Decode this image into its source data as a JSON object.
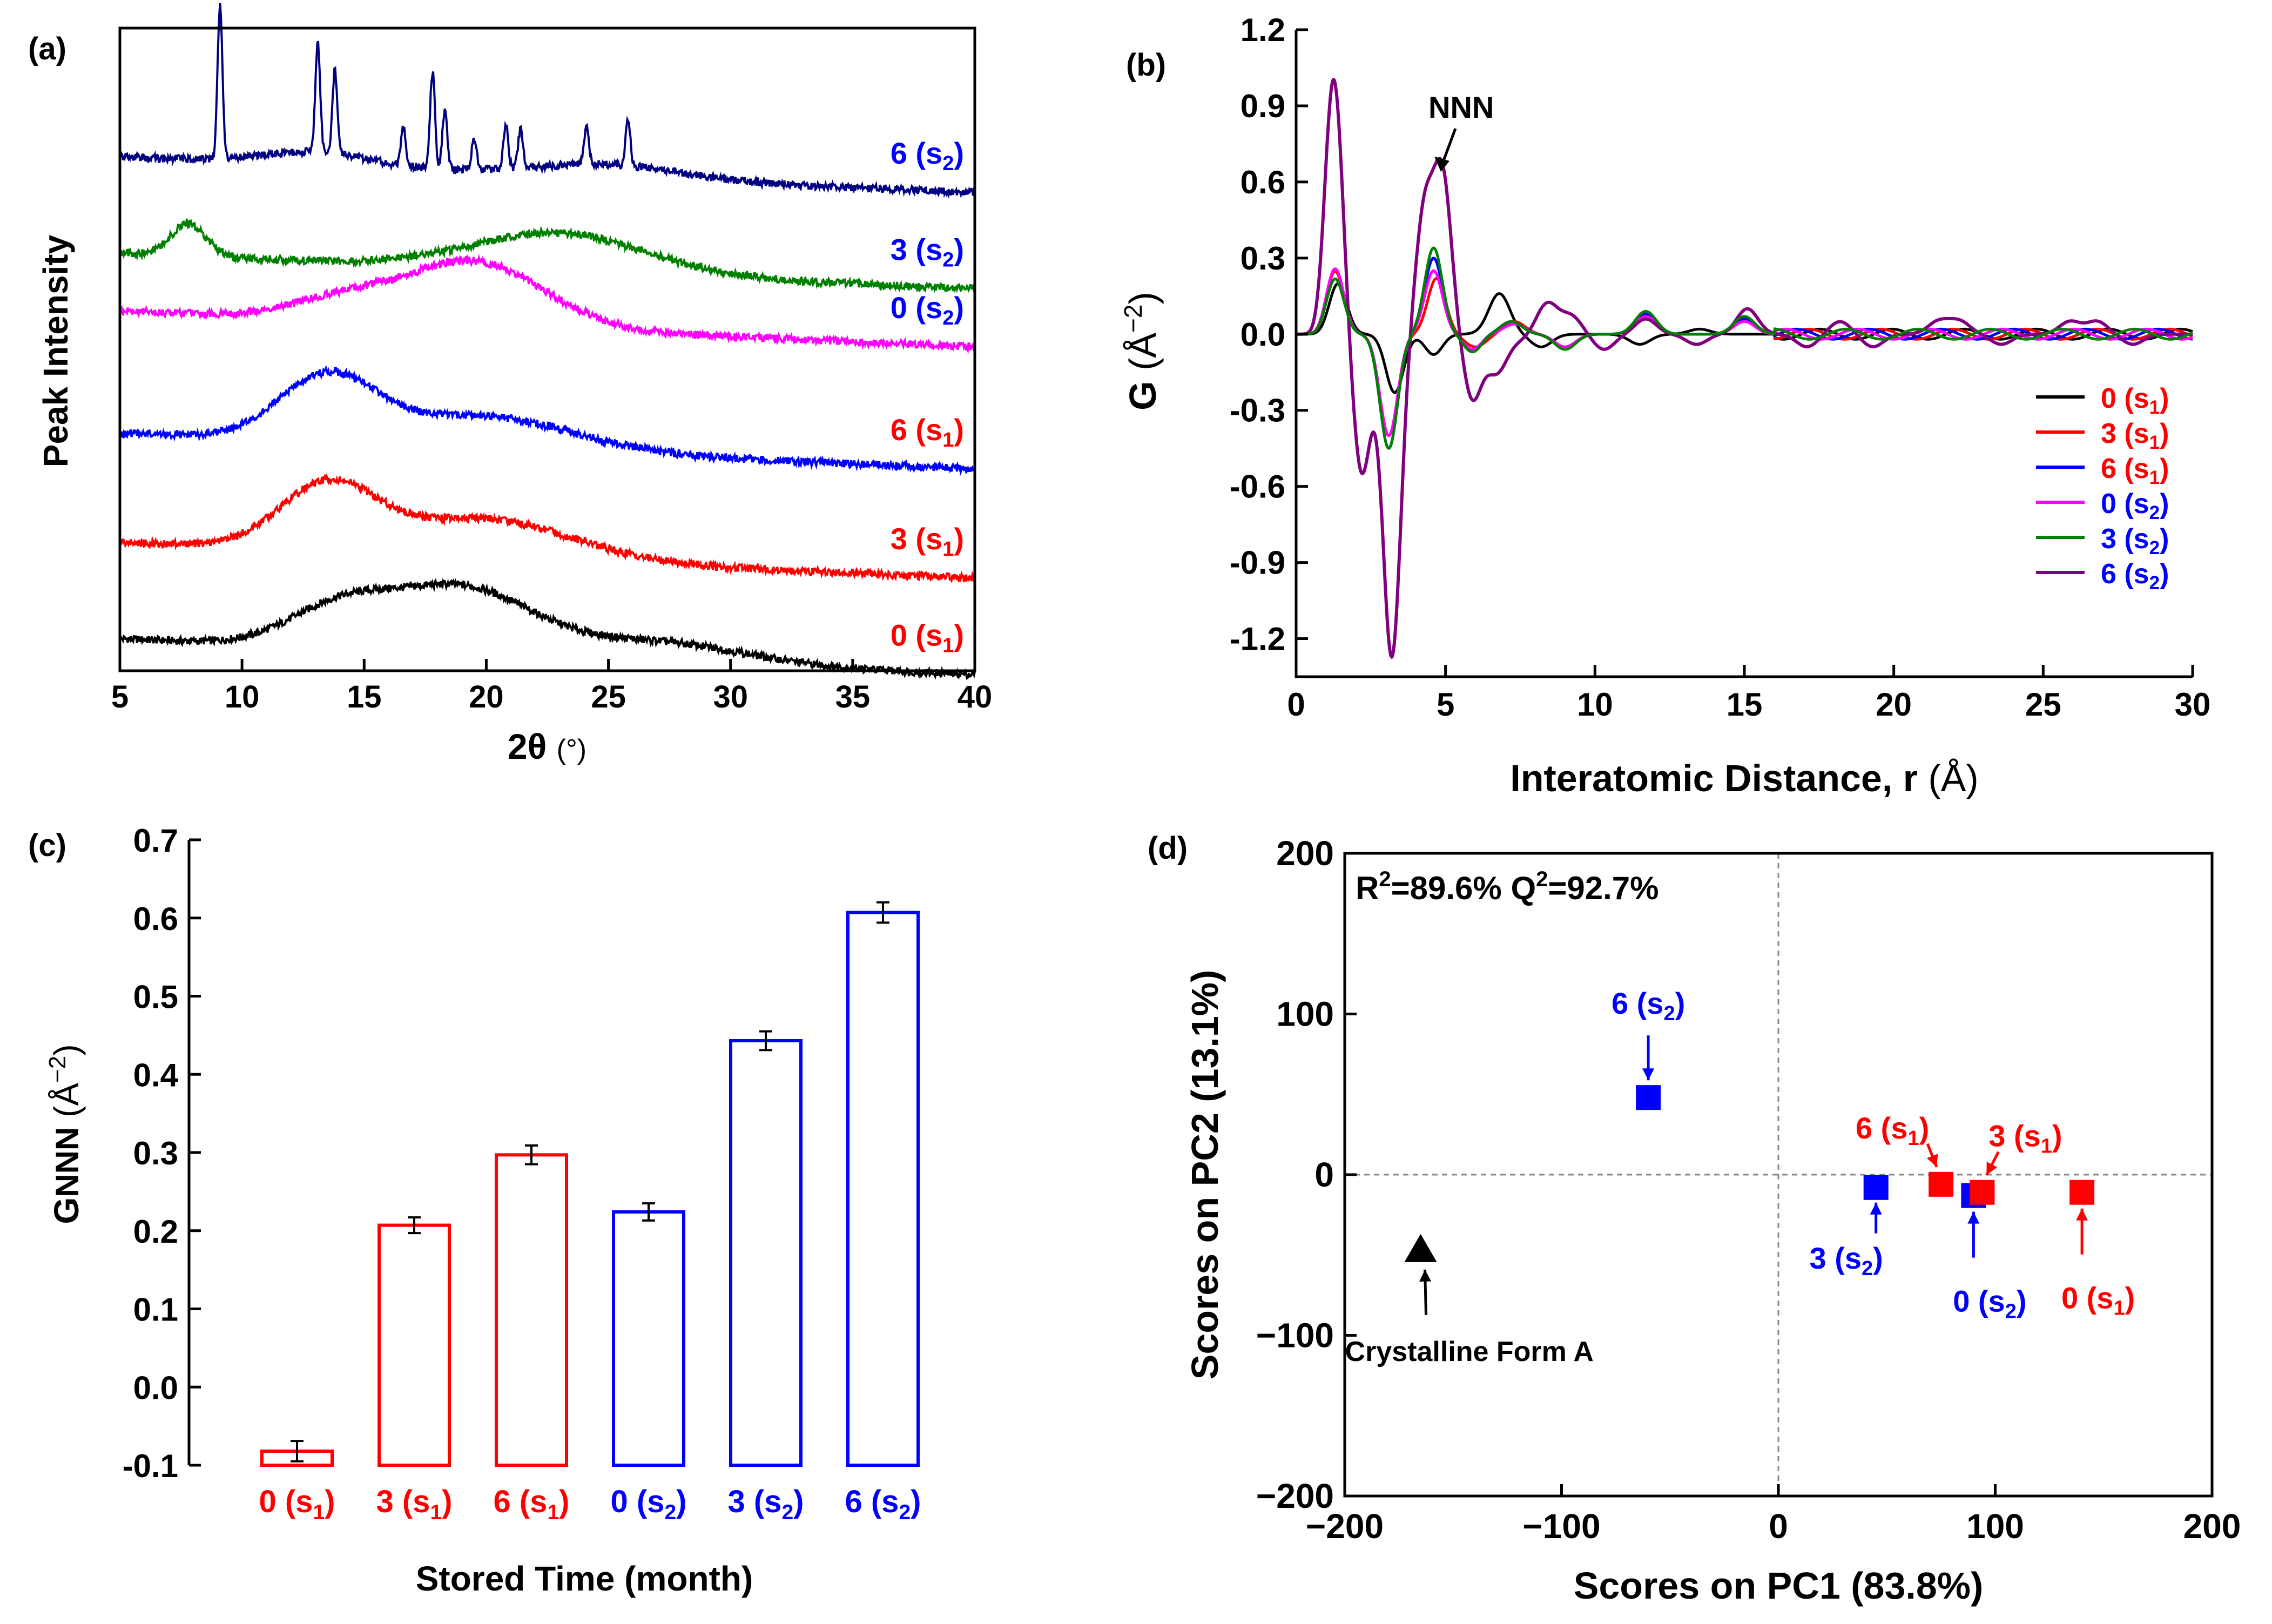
{
  "chart_data": [
    {
      "panel": "(a)",
      "type": "line",
      "xlabel_main": "2θ",
      "xlabel_unit": "(°)",
      "ylabel": "Peak Intensity",
      "xlim": [
        5,
        40
      ],
      "xticks": [
        "5",
        "10",
        "15",
        "20",
        "25",
        "30",
        "35",
        "40"
      ],
      "series": [
        {
          "name": "0 (s1)",
          "label": "0",
          "sub": "1",
          "color": "#000000",
          "label_color": "#ff0000",
          "offset": 0.05,
          "humps": [
            [
              14,
              0.06,
              3.0
            ],
            [
              19,
              0.1,
              4.0
            ],
            [
              27,
              0.03,
              5.0
            ]
          ],
          "peaks": []
        },
        {
          "name": "3 (s1)",
          "label": "3",
          "sub": "1",
          "color": "#ff0000",
          "label_color": "#ff0000",
          "offset": 0.2,
          "humps": [
            [
              13.5,
              0.1,
              2.8
            ],
            [
              20,
              0.06,
              5.0
            ]
          ],
          "peaks": []
        },
        {
          "name": "6 (s1)",
          "label": "6",
          "sub": "1",
          "color": "#0000ff",
          "label_color": "#ff0000",
          "offset": 0.37,
          "humps": [
            [
              13.5,
              0.1,
              2.8
            ],
            [
              20,
              0.05,
              5.0
            ]
          ],
          "peaks": []
        },
        {
          "name": "0 (s2)",
          "label": "0",
          "sub": "2",
          "color": "#ff00ff",
          "label_color": "#0000ff",
          "offset": 0.56,
          "humps": [
            [
              14,
              0.03,
              3.0
            ],
            [
              19.5,
              0.1,
              4.0
            ]
          ],
          "peaks": []
        },
        {
          "name": "3 (s2)",
          "label": "3",
          "sub": "2",
          "color": "#008000",
          "label_color": "#0000ff",
          "offset": 0.65,
          "humps": [
            [
              7.8,
              0.05,
              1.0
            ],
            [
              23,
              0.06,
              5.0
            ]
          ],
          "peaks": []
        },
        {
          "name": "6 (s2)",
          "label": "6",
          "sub": "2",
          "color": "#000080",
          "label_color": "#0000ff",
          "offset": 0.8,
          "humps": [
            [
              13,
              0.02,
              3.0
            ],
            [
              25,
              0.02,
              4.0
            ]
          ],
          "peaks": [
            [
              9.1,
              0.24
            ],
            [
              13.1,
              0.17
            ],
            [
              13.8,
              0.13
            ],
            [
              16.6,
              0.06
            ],
            [
              17.8,
              0.15
            ],
            [
              18.3,
              0.09
            ],
            [
              19.5,
              0.05
            ],
            [
              20.8,
              0.07
            ],
            [
              21.4,
              0.06
            ],
            [
              24.1,
              0.06
            ],
            [
              25.8,
              0.07
            ]
          ]
        }
      ]
    },
    {
      "panel": "(b)",
      "type": "line",
      "xlabel_main": "Interatomic Distance, r",
      "xlabel_unit": "(Å)",
      "ylabel_main": "G",
      "ylabel_unit": "(Å",
      "ylabel_sup": "−2",
      "xlim": [
        0,
        30
      ],
      "ylim": [
        -1.35,
        1.2
      ],
      "xticks": [
        "0",
        "5",
        "10",
        "15",
        "20",
        "25",
        "30"
      ],
      "yticks": [
        "-1.2",
        "-0.9",
        "-0.6",
        "-0.3",
        "0.0",
        "0.3",
        "0.6",
        "0.9",
        "1.2"
      ],
      "annotation": "NNN",
      "series": [
        {
          "name": "0 (s1)",
          "label": "0",
          "sub": "1",
          "color": "#000000",
          "label_color": "#ff0000",
          "peaks": [
            [
              1.4,
              0.2
            ],
            [
              3.3,
              -0.23
            ],
            [
              4.6,
              -0.08
            ],
            [
              6.8,
              0.16
            ],
            [
              8.2,
              -0.05
            ],
            [
              11.5,
              -0.04
            ],
            [
              13.5,
              0.02
            ]
          ]
        },
        {
          "name": "3 (s1)",
          "label": "3",
          "sub": "1",
          "color": "#ff0000",
          "label_color": "#ff0000",
          "peaks": [
            [
              1.3,
              0.25
            ],
            [
              3.1,
              -0.4
            ],
            [
              4.7,
              0.22
            ],
            [
              6,
              -0.05
            ],
            [
              7.3,
              0.05
            ],
            [
              9,
              -0.06
            ],
            [
              11.7,
              0.08
            ],
            [
              15,
              0.05
            ]
          ]
        },
        {
          "name": "6 (s1)",
          "label": "6",
          "sub": "1",
          "color": "#0000ff",
          "label_color": "#ff0000",
          "peaks": [
            [
              1.3,
              0.22
            ],
            [
              3.1,
              -0.45
            ],
            [
              4.6,
              0.3
            ],
            [
              5.9,
              -0.06
            ],
            [
              7.2,
              0.05
            ],
            [
              9,
              -0.05
            ],
            [
              11.7,
              0.08
            ],
            [
              15,
              0.06
            ]
          ]
        },
        {
          "name": "0 (s2)",
          "label": "0",
          "sub": "2",
          "color": "#ff00ff",
          "label_color": "#0000ff",
          "peaks": [
            [
              1.3,
              0.26
            ],
            [
              3.1,
              -0.4
            ],
            [
              4.6,
              0.25
            ],
            [
              5.9,
              -0.06
            ],
            [
              7.3,
              0.04
            ],
            [
              9,
              -0.05
            ],
            [
              11.7,
              0.07
            ],
            [
              15,
              0.05
            ]
          ]
        },
        {
          "name": "3 (s2)",
          "label": "3",
          "sub": "2",
          "color": "#008000",
          "label_color": "#0000ff",
          "peaks": [
            [
              1.3,
              0.22
            ],
            [
              3.1,
              -0.45
            ],
            [
              4.6,
              0.34
            ],
            [
              5.9,
              -0.07
            ],
            [
              7.2,
              0.05
            ],
            [
              9,
              -0.06
            ],
            [
              11.7,
              0.09
            ],
            [
              15,
              0.07
            ]
          ]
        },
        {
          "name": "6 (s2)",
          "label": "6",
          "sub": "2",
          "color": "#800080",
          "label_color": "#0000ff",
          "peaks": [
            [
              1.25,
              1.02
            ],
            [
              2.2,
              -0.55
            ],
            [
              3.2,
              -1.27
            ],
            [
              4.3,
              0.48
            ],
            [
              4.9,
              0.61
            ],
            [
              5.9,
              -0.25
            ],
            [
              6.7,
              -0.15
            ],
            [
              7.5,
              -0.02
            ],
            [
              8.4,
              0.12
            ],
            [
              9.2,
              0.07
            ],
            [
              10.3,
              -0.06
            ],
            [
              11.7,
              0.06
            ],
            [
              13.4,
              -0.04
            ],
            [
              15.1,
              0.1
            ],
            [
              17.1,
              -0.05
            ],
            [
              18.2,
              0.05
            ],
            [
              19.3,
              -0.05
            ],
            [
              21.5,
              0.05
            ],
            [
              22.2,
              0.05
            ],
            [
              23.6,
              -0.04
            ],
            [
              25.9,
              0.05
            ],
            [
              26.8,
              0.05
            ],
            [
              28,
              -0.04
            ]
          ]
        }
      ]
    },
    {
      "panel": "(c)",
      "type": "bar",
      "xlabel": "Stored Time (month)",
      "ylabel_main": "G",
      "ylabel_sub": "NNN",
      "ylabel_unit": "(Å",
      "ylabel_sup": "−2",
      "ylabel_close": ")",
      "ylim": [
        -0.1,
        0.7
      ],
      "yticks": [
        "-0.1",
        "0.0",
        "0.1",
        "0.2",
        "0.3",
        "0.4",
        "0.5",
        "0.6",
        "0.7"
      ],
      "categories": [
        {
          "name": "0 (s1)",
          "label": "0",
          "sub": "1",
          "value": -0.082,
          "error": 0.013,
          "color": "#ff0000"
        },
        {
          "name": "3 (s1)",
          "label": "3",
          "sub": "1",
          "value": 0.207,
          "error": 0.01,
          "color": "#ff0000"
        },
        {
          "name": "6 (s1)",
          "label": "6",
          "sub": "1",
          "value": 0.297,
          "error": 0.012,
          "color": "#ff0000"
        },
        {
          "name": "0 (s2)",
          "label": "0",
          "sub": "2",
          "value": 0.224,
          "error": 0.011,
          "color": "#0000ff"
        },
        {
          "name": "3 (s2)",
          "label": "3",
          "sub": "2",
          "value": 0.443,
          "error": 0.012,
          "color": "#0000ff"
        },
        {
          "name": "6 (s2)",
          "label": "6",
          "sub": "2",
          "value": 0.607,
          "error": 0.013,
          "color": "#0000ff"
        }
      ]
    },
    {
      "panel": "(d)",
      "type": "scatter",
      "xlabel": "Scores on PC1 (83.8%)",
      "ylabel": "Scores on PC2 (13.1%)",
      "xlim": [
        -200,
        200
      ],
      "ylim": [
        -200,
        200
      ],
      "xticks": [
        "−200",
        "−100",
        "0",
        "100",
        "200"
      ],
      "yticks": [
        "−200",
        "−100",
        "0",
        "100",
        "200"
      ],
      "stats_r_base": "R",
      "stats_r_sup": "2",
      "stats_r_val": "=89.6%",
      "stats_q_base": "Q",
      "stats_q_sup": "2",
      "stats_q_val": "=92.7%",
      "points": [
        {
          "name": "6 (s2)",
          "label": "6",
          "sub": "2",
          "x": -60,
          "y": 48,
          "color": "#0000ff",
          "marker": "square",
          "label_pos": "above"
        },
        {
          "name": "3 (s2)",
          "label": "3",
          "sub": "2",
          "x": 45,
          "y": -8,
          "color": "#0000ff",
          "marker": "square",
          "label_pos": "below-left"
        },
        {
          "name": "0 (s2)",
          "label": "0",
          "sub": "2",
          "x": 90,
          "y": -13,
          "color": "#0000ff",
          "marker": "square",
          "label_pos": "below"
        },
        {
          "name": "6 (s1)",
          "label": "6",
          "sub": "1",
          "x": 75,
          "y": -6,
          "color": "#ff0000",
          "marker": "square",
          "label_pos": "above-left"
        },
        {
          "name": "3 (s1)",
          "label": "3",
          "sub": "1",
          "x": 94,
          "y": -11,
          "color": "#ff0000",
          "marker": "square",
          "label_pos": "above-right"
        },
        {
          "name": "0 (s1)",
          "label": "0",
          "sub": "1",
          "x": 140,
          "y": -11,
          "color": "#ff0000",
          "marker": "square",
          "label_pos": "below"
        },
        {
          "name": "Crystalline Form A",
          "label": "Crystalline Form A",
          "sub": "",
          "x": -165,
          "y": -47,
          "color": "#000000",
          "marker": "triangle",
          "label_pos": "below"
        }
      ]
    }
  ]
}
